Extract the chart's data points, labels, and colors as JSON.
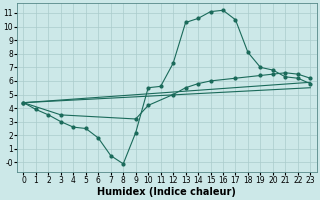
{
  "background_color": "#cce8e8",
  "grid_color": "#aacccc",
  "line_color": "#1a6a5a",
  "xlabel": "Humidex (Indice chaleur)",
  "xlabel_fontsize": 7,
  "tick_fontsize": 5.5,
  "xlim": [
    -0.5,
    23.5
  ],
  "ylim": [
    -0.7,
    11.7
  ],
  "xticks": [
    0,
    1,
    2,
    3,
    4,
    5,
    6,
    7,
    8,
    9,
    10,
    11,
    12,
    13,
    14,
    15,
    16,
    17,
    18,
    19,
    20,
    21,
    22,
    23
  ],
  "yticks": [
    0,
    1,
    2,
    3,
    4,
    5,
    6,
    7,
    8,
    9,
    10,
    11
  ],
  "ytick_labels": [
    "-0",
    "1",
    "2",
    "3",
    "4",
    "5",
    "6",
    "7",
    "8",
    "9",
    "10",
    "11"
  ],
  "line1_x": [
    0,
    1,
    2,
    3,
    4,
    5,
    6,
    7,
    8,
    9,
    10,
    11,
    12,
    13,
    14,
    15,
    16,
    17,
    18,
    19,
    20,
    21,
    22,
    23
  ],
  "line1_y": [
    4.4,
    3.9,
    3.5,
    3.0,
    2.6,
    2.5,
    1.8,
    0.5,
    -0.1,
    2.2,
    5.5,
    5.6,
    7.3,
    10.3,
    10.6,
    11.1,
    11.2,
    10.5,
    8.1,
    7.0,
    6.8,
    6.3,
    6.2,
    5.8
  ],
  "line2_x": [
    0,
    3,
    9,
    10,
    12,
    13,
    14,
    15,
    17,
    19,
    20,
    21,
    22,
    23
  ],
  "line2_y": [
    4.4,
    3.5,
    3.2,
    4.2,
    5.0,
    5.5,
    5.8,
    6.0,
    6.2,
    6.4,
    6.5,
    6.6,
    6.5,
    6.2
  ],
  "line3_x": [
    0,
    23
  ],
  "line3_y": [
    4.4,
    5.9
  ],
  "line4_x": [
    0,
    23
  ],
  "line4_y": [
    4.4,
    5.5
  ]
}
